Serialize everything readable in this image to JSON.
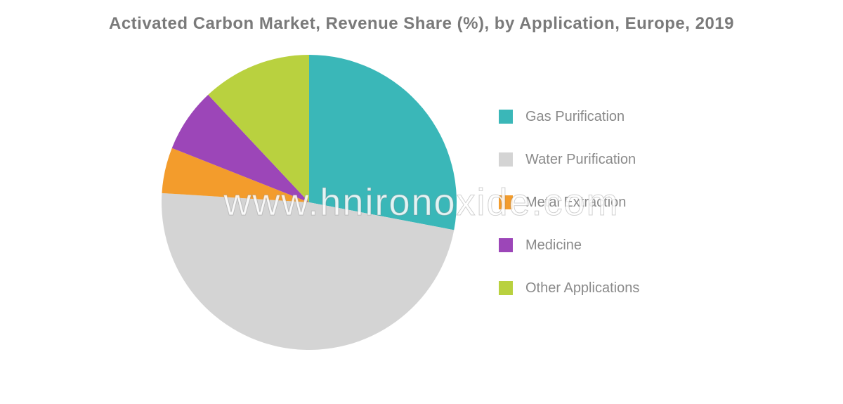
{
  "chart": {
    "type": "pie",
    "title": "Activated Carbon Market, Revenue Share (%), by Application, Europe, 2019",
    "title_fontsize": 24,
    "title_color": "#7a7a7a",
    "background_color": "#ffffff",
    "legend_fontsize": 20,
    "legend_color": "#8a8a8a",
    "swatch_size": 20,
    "pie_diameter": 420,
    "slices": [
      {
        "label": "Gas Purification",
        "value": 28,
        "color": "#3ab7b8"
      },
      {
        "label": "Water Purification",
        "value": 48,
        "color": "#d4d4d4"
      },
      {
        "label": "Metal Extraction",
        "value": 5,
        "color": "#f39c2c"
      },
      {
        "label": "Medicine",
        "value": 7,
        "color": "#9c46b8"
      },
      {
        "label": "Other Applications",
        "value": 12,
        "color": "#b9d13f"
      }
    ],
    "start_angle_deg": -90
  },
  "watermark": "www.hnironoxide.com"
}
